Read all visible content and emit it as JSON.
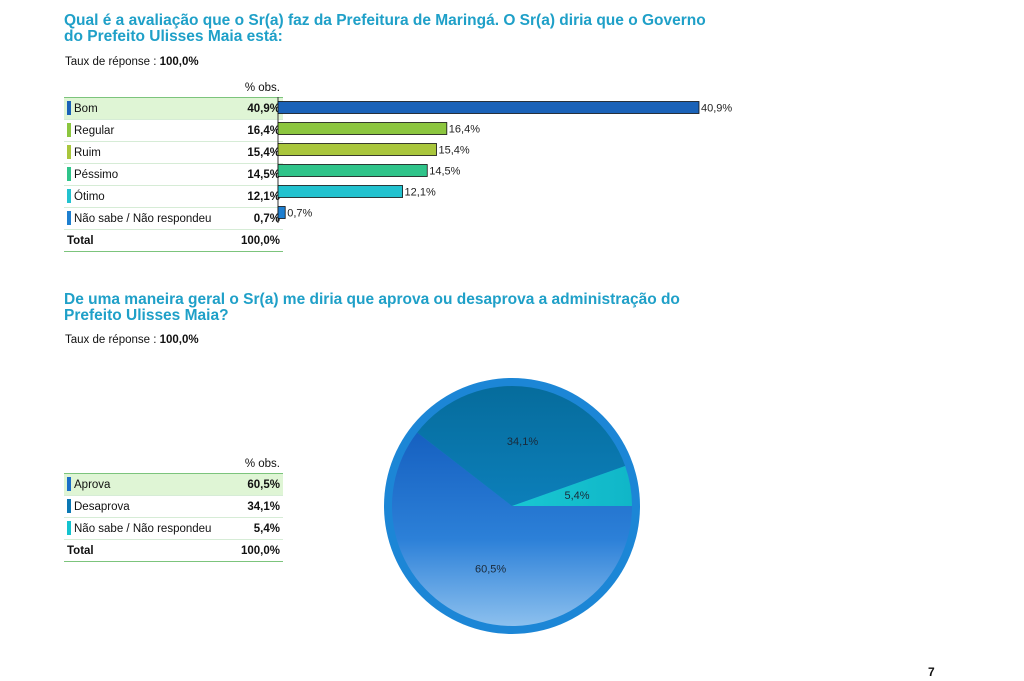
{
  "q1": {
    "title_line1": "Qual é a avaliação que o Sr(a) faz da Prefeitura de Maringá. O Sr(a) diria que o Governo",
    "title_line2": "do Prefeito Ulisses Maia está:",
    "rate_label": "Taux de réponse : ",
    "rate_value": "100,0%",
    "col_header": "% obs.",
    "total_label": "Total",
    "total_value": "100,0%"
  },
  "q2": {
    "title_line1": "De uma maneira geral o Sr(a) me diria que aprova ou desaprova a administração do",
    "title_line2": "Prefeito Ulisses Maia?",
    "rate_label": "Taux de réponse : ",
    "rate_value": "100,0%",
    "col_header": "% obs.",
    "total_label": "Total",
    "total_value": "100,0%"
  },
  "page_number": "7",
  "chart_data": [
    {
      "type": "bar",
      "orientation": "horizontal",
      "categories": [
        "Bom",
        "Regular",
        "Ruim",
        "Péssimo",
        "Ótimo",
        "Não sabe / Não respondeu"
      ],
      "values": [
        40.9,
        16.4,
        15.4,
        14.5,
        12.1,
        0.7
      ],
      "value_labels": [
        "40,9%",
        "16,4%",
        "15,4%",
        "14,5%",
        "12,1%",
        "0,7%"
      ],
      "colors": [
        "#1a62b8",
        "#8cc63f",
        "#a9c63c",
        "#2fc48a",
        "#22c2cf",
        "#1e7fd0"
      ],
      "xlim": [
        0,
        40.9
      ]
    },
    {
      "type": "pie",
      "categories": [
        "Aprova",
        "Desaprova",
        "Não sabe / Não respondeu"
      ],
      "values": [
        60.5,
        34.1,
        5.4
      ],
      "value_labels": [
        "60,5%",
        "34,1%",
        "5,4%"
      ],
      "colors": [
        "#1a6ec8",
        "#0a78b4",
        "#14c3cf"
      ]
    }
  ]
}
